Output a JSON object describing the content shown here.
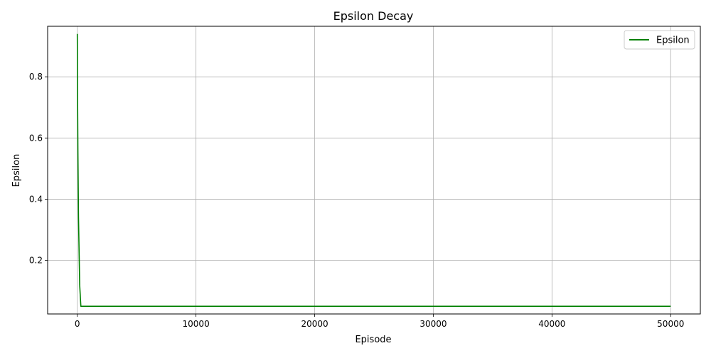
{
  "chart_data": {
    "type": "line",
    "title": "Epsilon Decay",
    "xlabel": "Episode",
    "ylabel": "Epsilon",
    "xlim": [
      -2500,
      52500
    ],
    "ylim": [
      0.025,
      0.965
    ],
    "xticks": [
      0,
      10000,
      20000,
      30000,
      40000,
      50000
    ],
    "xtick_labels": [
      "0",
      "10000",
      "20000",
      "30000",
      "40000",
      "50000"
    ],
    "yticks": [
      0.2,
      0.4,
      0.6,
      0.8
    ],
    "ytick_labels": [
      "0.2",
      "0.4",
      "0.6",
      "0.8"
    ],
    "grid": true,
    "legend_position": "upper right",
    "series": [
      {
        "name": "Epsilon",
        "color": "#008000",
        "x": [
          0,
          10,
          20,
          30,
          50,
          100,
          200,
          300,
          50000
        ],
        "y": [
          0.94,
          0.85,
          0.77,
          0.69,
          0.56,
          0.34,
          0.12,
          0.05,
          0.05
        ]
      }
    ]
  }
}
